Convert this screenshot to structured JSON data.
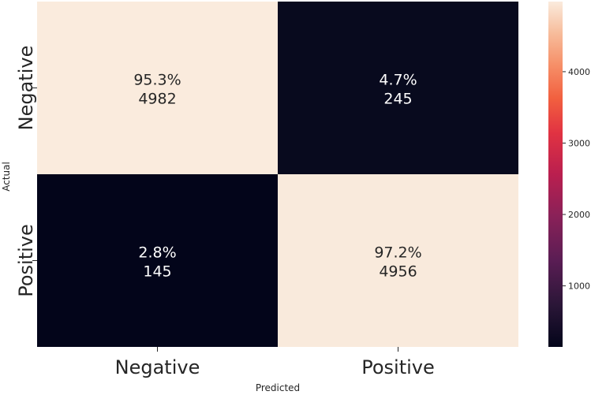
{
  "chart_data": {
    "type": "heatmap",
    "xlabel": "Predicted",
    "ylabel": "Actual",
    "x_categories": [
      "Negative",
      "Positive"
    ],
    "y_categories": [
      "Negative",
      "Positive"
    ],
    "cells": [
      {
        "actual": "Negative",
        "predicted": "Negative",
        "percent_label": "95.3%",
        "count": 4982,
        "count_label": "4982"
      },
      {
        "actual": "Negative",
        "predicted": "Positive",
        "percent_label": "4.7%",
        "count": 245,
        "count_label": "245"
      },
      {
        "actual": "Positive",
        "predicted": "Negative",
        "percent_label": "2.8%",
        "count": 145,
        "count_label": "145"
      },
      {
        "actual": "Positive",
        "predicted": "Positive",
        "percent_label": "97.2%",
        "count": 4956,
        "count_label": "4956"
      }
    ],
    "colorbar": {
      "colormap": "rocket",
      "vmin": 145,
      "vmax": 4982,
      "ticks": [
        1000,
        2000,
        3000,
        4000
      ],
      "tick_labels": [
        "1000",
        "2000",
        "3000",
        "4000"
      ]
    },
    "grid": false,
    "legend": "right",
    "colors": {
      "low": "#03051a",
      "high": "#faebdd",
      "text_on_dark": "#ffffff",
      "text_on_light": "#262626"
    }
  }
}
